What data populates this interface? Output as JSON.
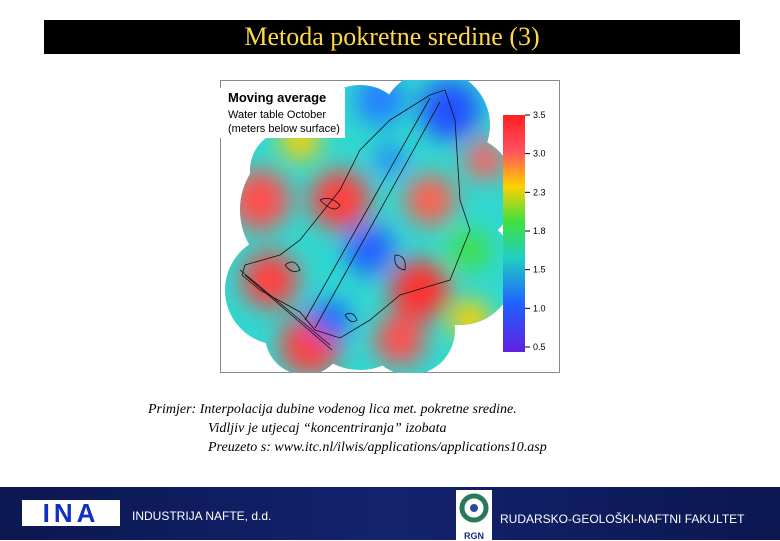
{
  "header": {
    "title": "Metoda pokretne sredine (3)"
  },
  "map": {
    "title": "Moving average",
    "subtitle": "Water table October",
    "units": "(meters below surface)",
    "legend_labels": [
      "3.5",
      "3.0",
      "2.3",
      "1.8",
      "1.5",
      "1.0",
      "0.5"
    ]
  },
  "caption": {
    "lines": [
      "Primjer: Interpolacija dubine vodenog lica met. pokretne sredine.",
      "Vidljiv je utjecaj “koncentriranja” izobata",
      "Preuzeto s: www.itc.nl/ilwis/applications/applications10.asp"
    ]
  },
  "footer": {
    "left_logo": "INA",
    "left_text": "INDUSTRIJA NAFTE, d.d.",
    "right_logo": "RGN",
    "right_text": "RUDARSKO-GEOLOŠKI-NAFTNI FAKULTET"
  }
}
